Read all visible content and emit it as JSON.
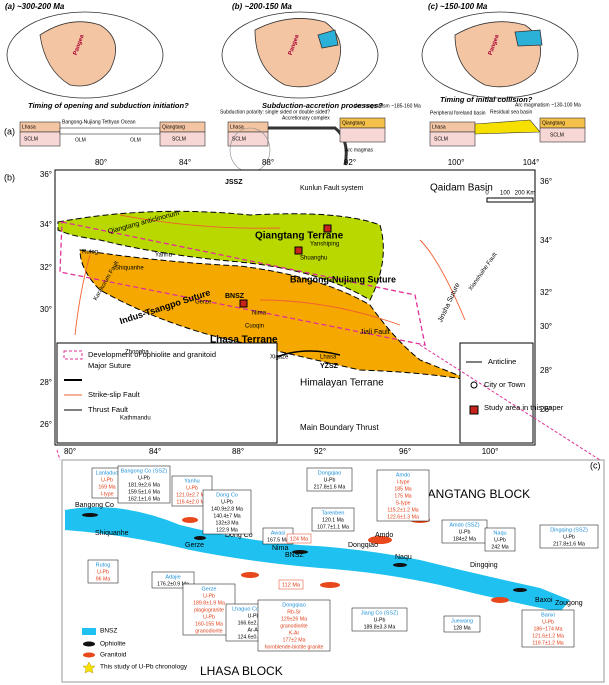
{
  "panel_a": {
    "stages": [
      {
        "title": "(a) ~300-200 Ma",
        "question": "Timing of opening and subduction initiation?",
        "continent": "Pangea"
      },
      {
        "title": "(b) ~200-150 Ma",
        "question": "Subduction-accretion processes?",
        "continent": "Pangea"
      },
      {
        "title": "(c) ~150-100 Ma",
        "question": "Timing of initial collision?",
        "continent": "Pangea"
      }
    ],
    "label": "(a)",
    "section_1": [
      "Lhasa",
      "SCLM",
      "Bangong-Nujiang Tethyan Ocean",
      "OLM",
      "OLM",
      "Qiangtang",
      "SCLM"
    ],
    "section_2": [
      "Lhasa",
      "SCLM",
      "Subduction polarity: single sided or double sided?",
      "Accretionary complex",
      "Arc magmatism ~185-160 Ma",
      "Qiangtang",
      "Arc magmas"
    ],
    "section_3": [
      "Lhasa",
      "SCLM",
      "Peripheral foreland basin",
      "Residual sea basin",
      "Arc magmatism ~130-100 Ma",
      "Qiangtang",
      "SCLM"
    ]
  },
  "panel_b": {
    "label": "(b)",
    "lon_top": [
      "80°",
      "84°",
      "88°",
      "92°",
      "100°",
      "104°"
    ],
    "lon_bottom": [
      "80°",
      "84°",
      "88°",
      "92°",
      "96°",
      "100°"
    ],
    "lat_left": [
      "36°",
      "34°",
      "32°",
      "30°",
      "28°",
      "26°"
    ],
    "lat_right": [
      "36°",
      "34°",
      "32°",
      "30°",
      "28°",
      "26°"
    ],
    "scale": [
      "0",
      "100",
      "200 Km"
    ],
    "places": [
      "JSSZ",
      "Kunlun Fault system",
      "Qaidam Basin",
      "Qiangtang Terrane",
      "Yanshiping",
      "Shuanghu",
      "Bangong-Nujiang Suture",
      "BNSZ",
      "Nima",
      "Cuoqin",
      "Lhasa Terrane",
      "Jiali Fault",
      "Jinsha Suture",
      "Xianshuihe Fault",
      "Indus-Tsangpo Suture",
      "Zhongba",
      "Xigaze",
      "Lhasa",
      "YZSZ",
      "Himalayan Terrane",
      "Kathmandu",
      "Main Boundary Thrust",
      "Karakorum Fault",
      "Rutog",
      "Qiangtang anticlinorium",
      "Yanhu",
      "Shiquanhe",
      "Gerze"
    ],
    "legend": [
      "Development of ophiolite and granitoid",
      "Major Suture",
      "Strike-slip Fault",
      "Thrust Fault",
      "Anticline",
      "City or Town",
      "Study area in this paper"
    ]
  },
  "panel_c": {
    "label": "(c)",
    "blocks": [
      "QIANGTANG BLOCK",
      "LHASA BLOCK"
    ],
    "places": [
      "Bangong Co",
      "Shiquanhe",
      "Dong Co",
      "Gerze",
      "Nima",
      "BNSZ",
      "Amdo",
      "Dongqiao",
      "Naqu",
      "Dingqing",
      "Baxoi",
      "Zougong"
    ],
    "legend": [
      "BNSZ",
      "Ophiolite",
      "Granitoid",
      "This study of U-Pb chronology"
    ],
    "boxes": [
      {
        "name": "Lanladuo",
        "lines": [
          "U-Pb",
          "169 Ma",
          "I-type"
        ],
        "color": "#e0401a"
      },
      {
        "name": "Bangong Co (SSZ)",
        "lines": [
          "U-Pb",
          "181.9±2.6 Ma",
          "159.5±1.6 Ma",
          "162.1±1.6 Ma"
        ],
        "color": "#000000"
      },
      {
        "name": "Yanhu",
        "lines": [
          "U-Pb",
          "121.0±2.7 Ma",
          "116.4±2.0 Ma"
        ],
        "color": "#e0401a"
      },
      {
        "name": "Dong Co",
        "lines": [
          "U-Pb",
          "140.9±2.8 Ma",
          "140.4±7 Ma",
          "132±3 Ma",
          "122.9 Ma"
        ],
        "color": "#000000"
      },
      {
        "name": "Rutog",
        "lines": [
          "U-Pb",
          "96 Ma"
        ],
        "color": "#e0401a"
      },
      {
        "name": "Adajie",
        "lines": [
          "176.2±0.9 Ma"
        ],
        "color": "#000000"
      },
      {
        "name": "Gerze",
        "lines": [
          "U-Pb",
          "189.8±1.9 Ma",
          "plagiogranite",
          "U-Pb",
          "160-155 Ma",
          "granodiorite"
        ],
        "color": "#e0401a"
      },
      {
        "name": "Lhaguo Co (SSZ)",
        "lines": [
          "U-Pb",
          "166.6±2.5 Ma",
          "Ar-Ar",
          "124.6±0.4 Ma"
        ],
        "color": "#000000"
      },
      {
        "name": "Awasi",
        "lines": [
          "167.5 Ma"
        ],
        "color": "#000000"
      },
      {
        "name": "Dongqiao",
        "lines": [
          "U-Pb",
          "217.8±1.6 Ma"
        ],
        "color": "#000000"
      },
      {
        "name": "Tarenben",
        "lines": [
          "120.1 Ma",
          "107.7±1.1 Ma"
        ],
        "color": "#000000"
      },
      {
        "name": "Amdo",
        "lines": [
          "I-type",
          "185 Ma",
          "175 Ma",
          "S-type",
          "115.2±1.2 Ma",
          "122.6±1.3 Ma"
        ],
        "color": "#e0401a"
      },
      {
        "name": "Amdo (SSZ)",
        "lines": [
          "U-Pb",
          "184±2 Ma"
        ],
        "color": "#000000"
      },
      {
        "name": "Naqu",
        "lines": [
          "U-Pb",
          "242 Ma"
        ],
        "color": "#000000"
      },
      {
        "name": "Dingqing (SSZ)",
        "lines": [
          "U-Pb",
          "217.8±1.6 Ma"
        ],
        "color": "#000000"
      },
      {
        "name": "Dongqiao",
        "lines": [
          "Rb-Sr",
          "129±26 Ma",
          "granodiorite",
          "K-Ar",
          "177±2 Ma",
          "hornblende-biotite granite"
        ],
        "color": "#e0401a"
      },
      {
        "name": "Jiang Co (SSZ)",
        "lines": [
          "U-Pb",
          "189.8±3.3 Ma"
        ],
        "color": "#000000"
      },
      {
        "name": "Juewang",
        "lines": [
          "128 Ma"
        ],
        "color": "#000000"
      },
      {
        "name": "Banxi",
        "lines": [
          "U-Pb",
          "186~174 Ma",
          "121.6±1.2 Ma",
          "119.7±1.2 Ma"
        ],
        "color": "#e0401a"
      }
    ],
    "tags": [
      "124 Ma",
      "112 Ma"
    ]
  }
}
